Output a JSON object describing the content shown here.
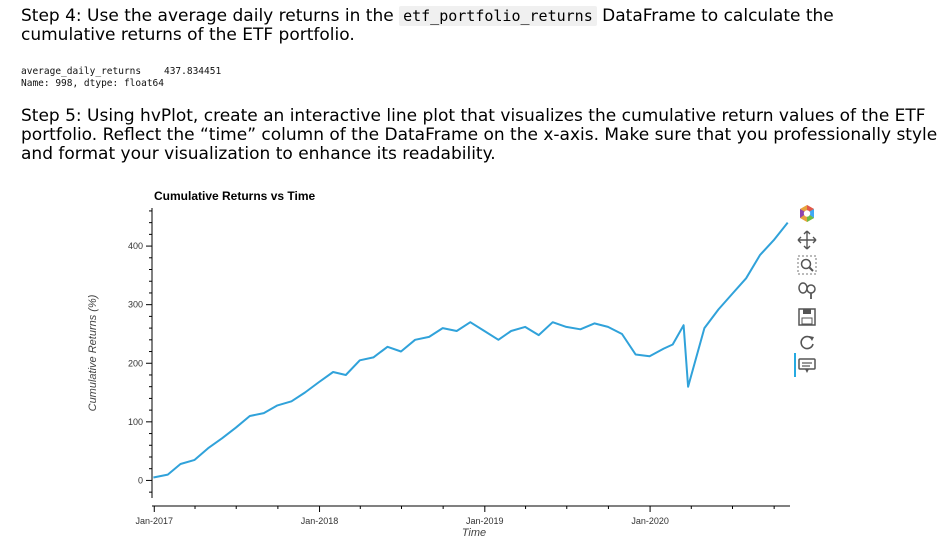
{
  "step4": {
    "prefix": "Step 4: Use the average daily returns in the ",
    "code": "etf_portfolio_returns",
    "suffix": " DataFrame to calculate the",
    "line2": "cumulative returns of the ETF portfolio."
  },
  "output": {
    "line1": "average_daily_returns    437.834451",
    "line2": "Name: 998, dtype: float64"
  },
  "step5": {
    "line1": "Step 5: Using hvPlot, create an interactive line plot that visualizes the cumulative return values of the ETF",
    "line2": "portfolio. Reflect the “time” column of the DataFrame on the x-axis. Make sure that you professionally style",
    "line3": "and format your visualization to enhance its readability."
  },
  "toolbar": {
    "tools": [
      "bokeh-logo-icon",
      "pan-icon",
      "box-zoom-icon",
      "wheel-zoom-icon",
      "save-icon",
      "reset-icon",
      "hover-icon"
    ]
  },
  "colors": {
    "line": "#30a2da",
    "axis": "#000000",
    "text": "#000000"
  },
  "chart_data": {
    "type": "line",
    "title": "Cumulative Returns vs Time",
    "xlabel": "Time",
    "ylabel": "Cumulative Returns (%)",
    "x_ticks": [
      "Jan-2017",
      "Jan-2018",
      "Jan-2019",
      "Jan-2020"
    ],
    "y_ticks": [
      "0",
      "100",
      "200",
      "300",
      "400"
    ],
    "ylim": [
      -30,
      465
    ],
    "xlim": [
      "2016-12-27",
      "2020-11-05"
    ],
    "series": [
      {
        "x": [
          "2016-12-30",
          "2017-01-31",
          "2017-02-28",
          "2017-03-31",
          "2017-04-30",
          "2017-05-31",
          "2017-06-30",
          "2017-07-31",
          "2017-08-31",
          "2017-09-30",
          "2017-10-31",
          "2017-11-30",
          "2017-12-31",
          "2018-01-31",
          "2018-02-28",
          "2018-03-31",
          "2018-04-30",
          "2018-05-31",
          "2018-06-30",
          "2018-07-31",
          "2018-08-31",
          "2018-09-30",
          "2018-10-31",
          "2018-11-30",
          "2018-12-31",
          "2019-01-31",
          "2019-02-28",
          "2019-03-31",
          "2019-04-30",
          "2019-05-31",
          "2019-06-30",
          "2019-07-31",
          "2019-08-31",
          "2019-09-30",
          "2019-10-31",
          "2019-11-30",
          "2019-12-31",
          "2020-01-31",
          "2020-02-20",
          "2020-03-15",
          "2020-03-25",
          "2020-04-30",
          "2020-05-31",
          "2020-06-30",
          "2020-07-31",
          "2020-08-31",
          "2020-09-30",
          "2020-10-31"
        ],
        "y": [
          5,
          10,
          28,
          35,
          55,
          72,
          90,
          110,
          115,
          128,
          135,
          150,
          168,
          185,
          180,
          205,
          210,
          228,
          220,
          240,
          245,
          260,
          255,
          270,
          255,
          240,
          255,
          262,
          248,
          270,
          262,
          258,
          268,
          262,
          250,
          215,
          212,
          225,
          232,
          265,
          160,
          260,
          292,
          318,
          345,
          385,
          410,
          440
        ]
      }
    ]
  }
}
